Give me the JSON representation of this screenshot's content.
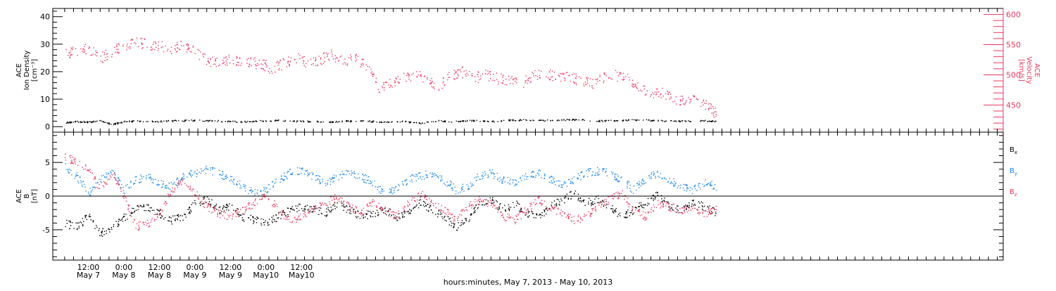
{
  "chart_data": [
    {
      "type": "scatter",
      "panel": "top",
      "ylabel_left": [
        "ACE",
        "Ion Density",
        "[cm⁻³]"
      ],
      "ylabel_right": [
        "ACE",
        "Velocity",
        "[km/s]"
      ],
      "y_left_ticks": [
        "0",
        "10",
        "20",
        "30",
        "40"
      ],
      "y_left_range": [
        -2,
        43
      ],
      "y_right_ticks": [
        "450",
        "500",
        "550",
        "600"
      ],
      "y_right_range": [
        405,
        610
      ],
      "series": [
        {
          "name": "",
          "axis": "left",
          "color": "#000000",
          "x_hours": [
            0,
            4,
            8,
            12,
            16,
            20,
            24,
            30,
            36,
            42,
            48,
            54,
            60,
            66,
            72,
            78,
            84,
            90,
            96,
            102,
            108,
            114,
            120,
            126,
            132,
            138,
            144,
            150,
            156,
            162,
            168,
            174,
            180,
            186,
            192,
            198,
            204,
            210,
            216,
            220
          ],
          "y": [
            1.5,
            2.0,
            1.8,
            2.2,
            0.9,
            2.0,
            2.1,
            2.0,
            2.2,
            2.4,
            2.3,
            2.1,
            1.9,
            2.2,
            2.4,
            2.1,
            2.0,
            1.9,
            2.2,
            2.1,
            1.8,
            2.0,
            1.4,
            2.2,
            2.0,
            2.4,
            2.0,
            2.5,
            2.6,
            2.4,
            2.6,
            2.7,
            2.2,
            2.3,
            2.6,
            2.4,
            2.2,
            2.1,
            2.3,
            2.0
          ]
        },
        {
          "name": "",
          "axis": "right",
          "color": "#e8385f",
          "x_hours": [
            0,
            4,
            8,
            12,
            16,
            20,
            24,
            28,
            32,
            36,
            40,
            44,
            48,
            52,
            56,
            60,
            64,
            66,
            70,
            74,
            78,
            82,
            86,
            90,
            94,
            98,
            102,
            106,
            110,
            114,
            118,
            122,
            126,
            130,
            134,
            138,
            142,
            146,
            150,
            154,
            158,
            162,
            166,
            170,
            174,
            178,
            182,
            186,
            190,
            194,
            198,
            202,
            206,
            210,
            214,
            218,
            220
          ],
          "y": [
            535,
            540,
            545,
            528,
            540,
            550,
            555,
            550,
            548,
            545,
            550,
            540,
            525,
            520,
            528,
            522,
            520,
            520,
            510,
            520,
            530,
            520,
            525,
            535,
            522,
            528,
            515,
            480,
            485,
            495,
            500,
            495,
            480,
            500,
            505,
            495,
            500,
            495,
            490,
            485,
            500,
            505,
            495,
            500,
            490,
            485,
            495,
            500,
            495,
            480,
            470,
            470,
            460,
            455,
            460,
            445,
            435
          ]
        }
      ]
    },
    {
      "type": "scatter",
      "panel": "bottom",
      "ylabel_left": [
        "ACE",
        "B",
        "[nT]"
      ],
      "y_left_ticks": [
        "-5",
        "0",
        "5"
      ],
      "y_left_range": [
        -9.5,
        9.5
      ],
      "zero_line": true,
      "series": [
        {
          "name": "Bx",
          "color": "#000000",
          "x_hours": [
            0,
            4,
            8,
            12,
            16,
            20,
            24,
            28,
            32,
            36,
            40,
            44,
            48,
            52,
            56,
            60,
            64,
            68,
            72,
            76,
            80,
            84,
            88,
            92,
            96,
            100,
            104,
            108,
            112,
            116,
            120,
            124,
            128,
            132,
            136,
            140,
            144,
            148,
            152,
            156,
            160,
            164,
            168,
            172,
            176,
            180,
            184,
            188,
            192,
            196,
            200,
            204,
            208,
            212,
            216,
            220
          ],
          "y": [
            -4.0,
            -4.5,
            -3.0,
            -5.5,
            -4.5,
            -3.0,
            -2.0,
            -1.5,
            -2.5,
            -3.5,
            -3.0,
            -1.0,
            -0.5,
            -2.0,
            -1.5,
            -3.0,
            -3.5,
            -4.0,
            -3.0,
            -2.0,
            -1.5,
            -2.0,
            -2.5,
            -1.0,
            -2.0,
            -3.0,
            -2.5,
            -2.0,
            -3.0,
            -2.5,
            -1.0,
            -2.0,
            -3.0,
            -4.5,
            -3.5,
            -1.0,
            -0.5,
            -2.0,
            -1.0,
            -2.5,
            -3.0,
            -1.5,
            -0.5,
            0.5,
            -1.0,
            -0.5,
            -1.5,
            -3.0,
            -2.0,
            -1.0,
            0.5,
            -1.5,
            -2.0,
            -1.0,
            -1.5,
            -2.5
          ]
        },
        {
          "name": "By",
          "color": "#1e88e5",
          "x_hours": [
            0,
            4,
            8,
            12,
            16,
            20,
            24,
            28,
            32,
            36,
            40,
            44,
            48,
            52,
            56,
            60,
            64,
            68,
            72,
            76,
            80,
            84,
            88,
            92,
            96,
            100,
            104,
            108,
            112,
            116,
            120,
            124,
            128,
            132,
            136,
            140,
            144,
            148,
            152,
            156,
            160,
            164,
            168,
            172,
            176,
            180,
            184,
            188,
            192,
            196,
            200,
            204,
            208,
            212,
            216,
            220
          ],
          "y": [
            4.5,
            3.0,
            0.5,
            2.5,
            3.5,
            1.0,
            2.5,
            3.0,
            2.0,
            1.5,
            3.0,
            3.5,
            4.0,
            3.5,
            2.5,
            1.5,
            0.5,
            1.0,
            2.5,
            3.5,
            4.0,
            3.0,
            2.0,
            3.0,
            3.5,
            3.0,
            2.0,
            0.5,
            1.0,
            2.5,
            3.0,
            3.5,
            2.5,
            1.0,
            1.5,
            3.0,
            3.5,
            2.5,
            2.0,
            3.0,
            3.5,
            2.5,
            1.5,
            2.5,
            3.5,
            3.8,
            3.5,
            2.5,
            1.0,
            2.5,
            3.5,
            2.5,
            1.5,
            1.0,
            2.0,
            1.5
          ]
        },
        {
          "name": "Bz",
          "color": "#e8385f",
          "x_hours": [
            0,
            4,
            8,
            12,
            16,
            20,
            24,
            28,
            32,
            36,
            40,
            44,
            48,
            52,
            56,
            60,
            64,
            68,
            72,
            76,
            80,
            84,
            88,
            92,
            96,
            100,
            104,
            108,
            112,
            116,
            120,
            124,
            128,
            132,
            136,
            140,
            144,
            148,
            152,
            156,
            160,
            164,
            168,
            172,
            176,
            180,
            184,
            188,
            192,
            196,
            200,
            204,
            208,
            212,
            216,
            220
          ],
          "y": [
            6.0,
            5.0,
            4.0,
            1.0,
            3.5,
            0.0,
            -4.5,
            -4.0,
            -2.5,
            1.0,
            2.5,
            0.5,
            -1.5,
            -2.5,
            -3.0,
            -2.0,
            -1.0,
            0.5,
            -2.0,
            -3.5,
            -3.0,
            -2.0,
            -1.0,
            0.0,
            -1.5,
            -2.5,
            -1.0,
            -2.0,
            -3.0,
            -1.0,
            0.5,
            -1.0,
            -2.0,
            -3.5,
            -1.5,
            -0.5,
            -1.0,
            -3.0,
            -3.5,
            -2.0,
            -0.5,
            -1.5,
            -2.5,
            -3.5,
            -3.0,
            -1.5,
            -0.5,
            0.5,
            -2.0,
            -3.0,
            -1.0,
            -1.5,
            -2.0,
            -1.5,
            -2.5,
            -2.0
          ]
        }
      ],
      "legend": [
        {
          "base": "B",
          "sub": "x",
          "color": "#000000"
        },
        {
          "base": "B",
          "sub": "y",
          "color": "#1e88e5"
        },
        {
          "base": "B",
          "sub": "z",
          "color": "#e8385f"
        }
      ]
    }
  ],
  "x_axis": {
    "range_hours": [
      -4,
      317
    ],
    "major_labels": [
      {
        "hour": 8,
        "time": "12:00",
        "day": "May 7"
      },
      {
        "hour": 20,
        "time": "0:00",
        "day": "May 8"
      },
      {
        "hour": 32,
        "time": "12:00",
        "day": "May 8"
      },
      {
        "hour": 44,
        "time": "0:00",
        "day": "May 9"
      },
      {
        "hour": 56,
        "time": "12:00",
        "day": "May 9"
      },
      {
        "hour": 68,
        "time": "0:00",
        "day": "May10"
      },
      {
        "hour": 80,
        "time": "12:00",
        "day": "May10"
      }
    ],
    "title": "hours:minutes, May  7, 2013 - May 10, 2013"
  },
  "colors": {
    "density": "#000000",
    "velocity": "#e8385f",
    "bx": "#000000",
    "by": "#1e88e5",
    "bz": "#e8385f"
  }
}
